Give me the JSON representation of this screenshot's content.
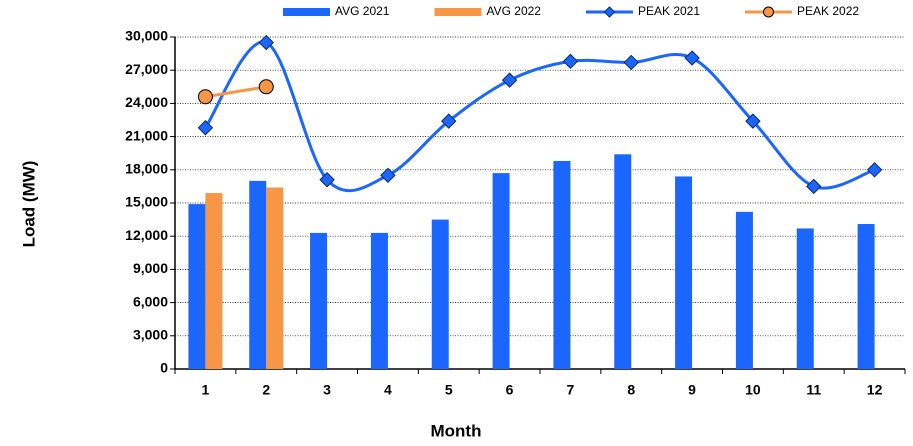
{
  "chart_data": {
    "type": "bar",
    "xlabel": "Month",
    "ylabel": "Load (MW)",
    "categories": [
      "1",
      "2",
      "3",
      "4",
      "5",
      "6",
      "7",
      "8",
      "9",
      "10",
      "11",
      "12"
    ],
    "series": [
      {
        "name": "AVG 2021",
        "type": "bar",
        "color": "#1a66ff",
        "values": [
          14900,
          17000,
          12300,
          12300,
          13500,
          17700,
          18800,
          19400,
          17400,
          14200,
          12700,
          13100
        ]
      },
      {
        "name": "AVG 2022",
        "type": "bar",
        "color": "#f79646",
        "values": [
          15900,
          16400,
          null,
          null,
          null,
          null,
          null,
          null,
          null,
          null,
          null,
          null
        ]
      },
      {
        "name": "PEAK 2021",
        "type": "line",
        "marker": "diamond",
        "color": "#1a66ff",
        "values": [
          21800,
          29500,
          17100,
          17500,
          22400,
          26100,
          27800,
          27700,
          28100,
          22400,
          16500,
          18000
        ]
      },
      {
        "name": "PEAK 2022",
        "type": "line",
        "marker": "circle",
        "color": "#f79646",
        "values": [
          24600,
          25500,
          null,
          null,
          null,
          null,
          null,
          null,
          null,
          null,
          null,
          null
        ]
      }
    ],
    "ylim": [
      0,
      30000
    ],
    "yticks": [
      0,
      {
        "value": 3000,
        "label": "3,000"
      },
      {
        "value": 6000,
        "label": "6,000"
      },
      {
        "value": 9000,
        "label": "9,000"
      },
      {
        "value": 12000,
        "label": "12,000"
      },
      {
        "value": 15000,
        "label": "15,000"
      },
      {
        "value": 18000,
        "label": "18,000"
      },
      {
        "value": 21000,
        "label": "21,000"
      },
      {
        "value": 24000,
        "label": "24,000"
      },
      {
        "value": 27000,
        "label": "27,000"
      },
      {
        "value": 30000,
        "label": "30,000"
      }
    ],
    "grid": true,
    "legend": "top"
  }
}
